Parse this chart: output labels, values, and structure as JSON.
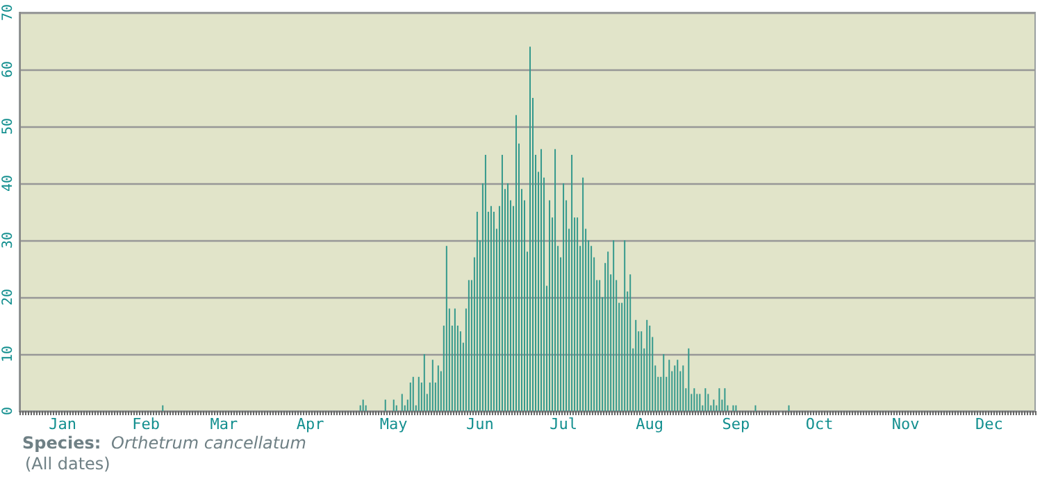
{
  "chart_data": {
    "type": "bar",
    "color": "#34998c",
    "categories": [
      null,
      null,
      null,
      null,
      null,
      null,
      null,
      null,
      null,
      null,
      null,
      null,
      null,
      null,
      null,
      "Jan",
      null,
      null,
      null,
      null,
      null,
      null,
      null,
      null,
      null,
      null,
      null,
      null,
      null,
      null,
      null,
      null,
      null,
      null,
      null,
      null,
      null,
      null,
      null,
      null,
      null,
      null,
      null,
      null,
      null,
      "Feb",
      null,
      null,
      null,
      null,
      null,
      null,
      null,
      null,
      null,
      null,
      null,
      null,
      null,
      null,
      null,
      null,
      null,
      null,
      null,
      null,
      null,
      null,
      null,
      null,
      null,
      null,
      null,
      "Mar",
      null,
      null,
      null,
      null,
      null,
      null,
      null,
      null,
      null,
      null,
      null,
      null,
      null,
      null,
      null,
      null,
      null,
      null,
      null,
      null,
      null,
      null,
      null,
      null,
      null,
      null,
      null,
      null,
      null,
      null,
      "Apr",
      null,
      null,
      null,
      null,
      null,
      null,
      null,
      null,
      null,
      null,
      null,
      null,
      null,
      null,
      null,
      null,
      null,
      null,
      null,
      null,
      null,
      null,
      null,
      null,
      null,
      null,
      null,
      null,
      null,
      "May",
      null,
      null,
      null,
      null,
      null,
      null,
      null,
      null,
      null,
      null,
      null,
      null,
      null,
      null,
      null,
      null,
      null,
      null,
      null,
      null,
      null,
      null,
      null,
      null,
      null,
      null,
      null,
      null,
      null,
      null,
      "Jun",
      null,
      null,
      null,
      null,
      null,
      null,
      null,
      null,
      null,
      null,
      null,
      null,
      null,
      null,
      null,
      null,
      null,
      null,
      null,
      null,
      null,
      null,
      null,
      null,
      null,
      null,
      null,
      null,
      null,
      "Jul",
      null,
      null,
      null,
      null,
      null,
      null,
      null,
      null,
      null,
      null,
      null,
      null,
      null,
      null,
      null,
      null,
      null,
      null,
      null,
      null,
      null,
      null,
      null,
      null,
      null,
      null,
      null,
      null,
      null,
      null,
      "Aug",
      null,
      null,
      null,
      null,
      null,
      null,
      null,
      null,
      null,
      null,
      null,
      null,
      null,
      null,
      null,
      null,
      null,
      null,
      null,
      null,
      null,
      null,
      null,
      null,
      null,
      null,
      null,
      null,
      null,
      null,
      "Sep",
      null,
      null,
      null,
      null,
      null,
      null,
      null,
      null,
      null,
      null,
      null,
      null,
      null,
      null,
      null,
      null,
      null,
      null,
      null,
      null,
      null,
      null,
      null,
      null,
      null,
      null,
      null,
      null,
      null,
      "Oct",
      null,
      null,
      null,
      null,
      null,
      null,
      null,
      null,
      null,
      null,
      null,
      null,
      null,
      null,
      null,
      null,
      null,
      null,
      null,
      null,
      null,
      null,
      null,
      null,
      null,
      null,
      null,
      null,
      null,
      null,
      "Nov",
      null,
      null,
      null,
      null,
      null,
      null,
      null,
      null,
      null,
      null,
      null,
      null,
      null,
      null,
      null,
      null,
      null,
      null,
      null,
      null,
      null,
      null,
      null,
      null,
      null,
      null,
      null,
      null,
      null,
      "Dec",
      null,
      null,
      null,
      null,
      null,
      null,
      null,
      null,
      null,
      null,
      null,
      null,
      null,
      null,
      null,
      null
    ],
    "values": [
      0,
      0,
      0,
      0,
      0,
      0,
      0,
      0,
      0,
      0,
      0,
      0,
      0,
      0,
      0,
      0,
      0,
      0,
      0,
      0,
      0,
      0,
      0,
      0,
      0,
      0,
      0,
      0,
      0,
      0,
      0,
      0,
      0,
      0,
      0,
      0,
      0,
      0,
      0,
      0,
      0,
      0,
      0,
      0,
      0,
      0,
      0,
      0,
      0,
      0,
      0,
      1,
      0,
      0,
      0,
      0,
      0,
      0,
      0,
      0,
      0,
      0,
      0,
      0,
      0,
      0,
      0,
      0,
      0,
      0,
      0,
      0,
      0,
      0,
      0,
      0,
      0,
      0,
      0,
      0,
      0,
      0,
      0,
      0,
      0,
      0,
      0,
      0,
      0,
      0,
      0,
      0,
      0,
      0,
      0,
      0,
      0,
      0,
      0,
      0,
      0,
      0,
      0,
      0,
      0,
      0,
      0,
      0,
      0,
      0,
      0,
      0,
      0,
      0,
      0,
      0,
      0,
      0,
      0,
      0,
      0,
      0,
      1,
      2,
      1,
      0,
      0,
      0,
      0,
      0,
      0,
      2,
      0,
      0,
      2,
      1,
      0,
      3,
      1,
      2,
      5,
      6,
      1,
      6,
      5,
      10,
      3,
      5,
      9,
      5,
      8,
      7,
      15,
      29,
      18,
      15,
      18,
      15,
      14,
      12,
      18,
      23,
      23,
      27,
      35,
      30,
      40,
      45,
      35,
      36,
      35,
      32,
      36,
      45,
      39,
      40,
      37,
      36,
      52,
      47,
      39,
      37,
      28,
      64,
      55,
      45,
      42,
      46,
      41,
      22,
      37,
      34,
      46,
      29,
      27,
      40,
      37,
      32,
      45,
      34,
      34,
      29,
      41,
      32,
      30,
      29,
      27,
      23,
      23,
      20,
      26,
      28,
      24,
      30,
      23,
      19,
      19,
      30,
      21,
      24,
      11,
      16,
      14,
      14,
      11,
      16,
      15,
      13,
      8,
      6,
      6,
      10,
      6,
      9,
      7,
      8,
      9,
      7,
      8,
      4,
      11,
      3,
      4,
      3,
      3,
      1,
      4,
      3,
      1,
      2,
      1,
      4,
      2,
      4,
      1,
      0,
      1,
      1,
      0,
      0,
      0,
      0,
      0,
      0,
      1,
      0,
      0,
      0,
      0,
      0,
      0,
      0,
      0,
      0,
      0,
      0,
      1,
      0,
      0,
      0,
      0,
      0,
      0,
      0,
      0,
      0,
      0,
      0,
      0,
      0,
      0,
      0,
      0,
      0,
      0,
      0,
      0,
      0,
      0,
      0,
      0,
      0,
      0,
      0,
      0,
      0,
      0,
      0,
      0,
      0,
      0,
      0,
      0,
      0,
      0,
      0,
      0,
      0,
      0,
      0,
      0,
      0,
      0,
      0,
      0,
      0,
      0,
      0,
      0,
      0,
      0,
      0,
      0,
      0,
      0,
      0,
      0,
      0,
      0,
      0,
      0,
      0,
      0,
      0,
      0,
      0,
      0,
      0,
      0,
      0,
      0,
      0,
      0,
      0,
      0,
      0,
      0,
      0,
      0,
      0,
      0,
      0,
      0,
      0,
      0
    ],
    "ylim": [
      0,
      70
    ],
    "yticks": [
      0,
      10,
      20,
      30,
      40,
      50,
      60,
      70
    ],
    "grid": "y",
    "annotations": [
      "Species:",
      "Orthetrum cancellatum",
      "(All dates)"
    ]
  }
}
